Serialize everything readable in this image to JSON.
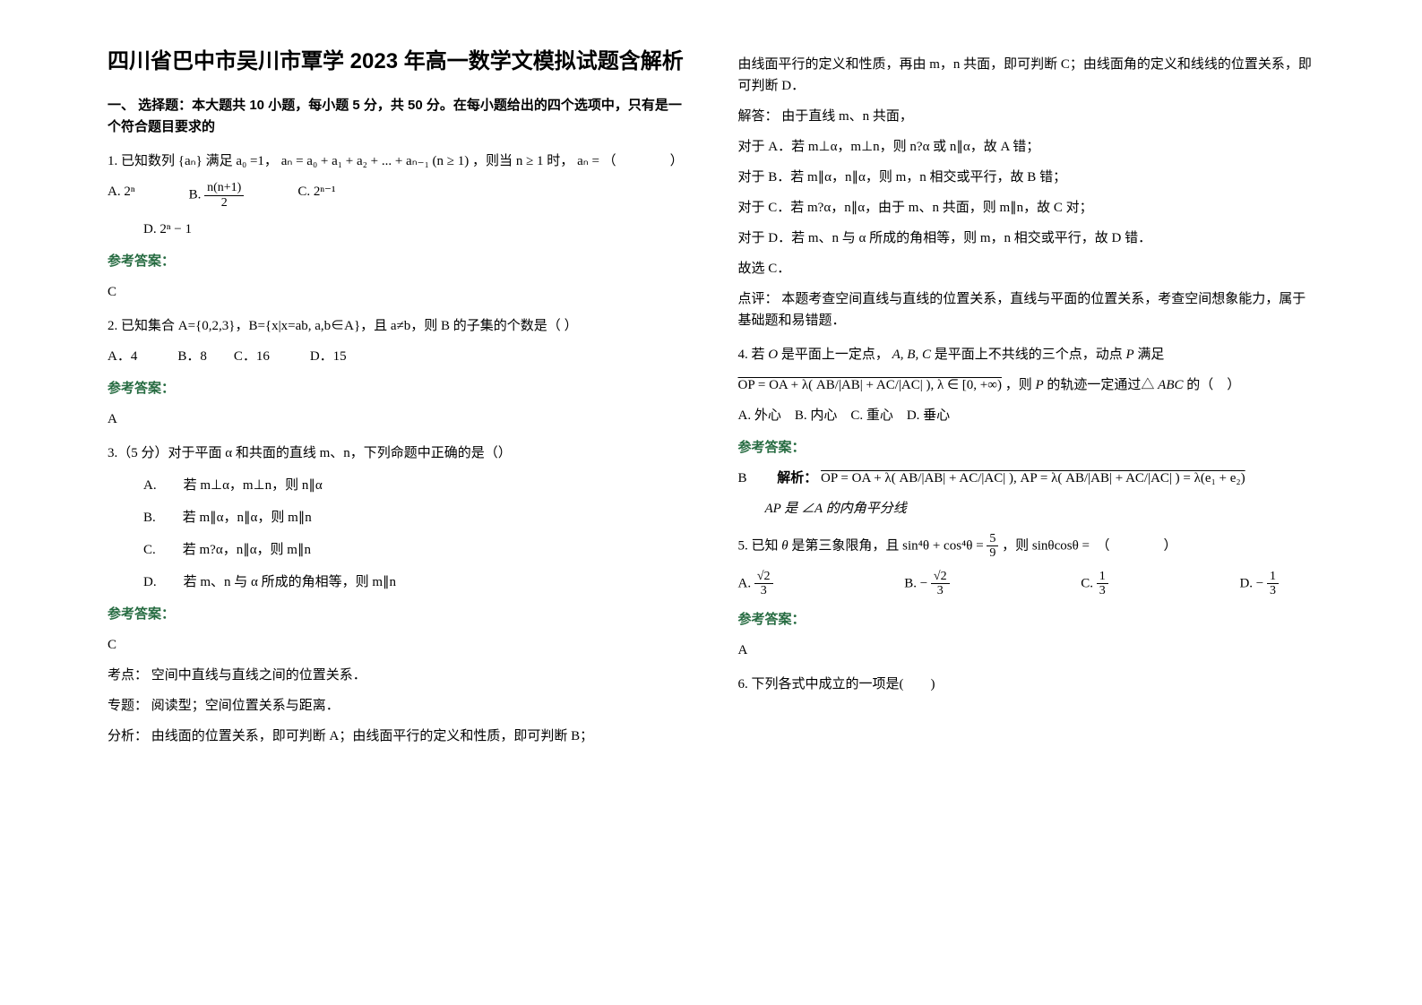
{
  "title": "四川省巴中市吴川市覃学 2023 年高一数学文模拟试题含解析",
  "section1_header": "一、 选择题：本大题共 10 小题，每小题 5 分，共 50 分。在每小题给出的四个选项中，只有是一个符合题目要求的",
  "q1": {
    "stem_a": "1. 已知数列",
    "stem_b": " 满足",
    "stem_c": "=1，",
    "stem_d": "，则当",
    "stem_e": "时，",
    "stem_f": " = （　　　　）",
    "seq": "{aₙ}",
    "a0": "a₀",
    "rec": "aₙ = a₀ + a₁ + a₂ + ... + aₙ₋₁ (n ≥ 1)",
    "cond": "n ≥ 1",
    "an": "aₙ",
    "optA": "A. 2ⁿ",
    "optB_label": "B. ",
    "optB_num": "n(n+1)",
    "optB_den": "2",
    "optC": "C. 2ⁿ⁻¹",
    "optD": "D. 2ⁿ − 1",
    "answer": "C"
  },
  "q2": {
    "stem": "2. 已知集合 A={0,2,3}，B={x|x=ab, a,b∈A}，且 a≠b，则 B 的子集的个数是（ ）",
    "opts": "A．4　　　B．8　　C．16　　　D．15",
    "answer": "A"
  },
  "q3": {
    "stem": "3.（5 分）对于平面 α 和共面的直线 m、n，下列命题中正确的是（）",
    "optA": "A.　　若 m⊥α，m⊥n，则 n∥α",
    "optB": "B.　　若 m∥α，n∥α，则 m∥n",
    "optC": "C.　　若 m?α，n∥α，则 m∥n",
    "optD": "D.　　若 m、n 与 α 所成的角相等，则 m∥n",
    "answer": "C",
    "kaodian_label": "考点：",
    "kaodian": "空间中直线与直线之间的位置关系．",
    "zhuanti_label": "专题：",
    "zhuanti": "阅读型；空间位置关系与距离．",
    "fenxi_label": "分析：",
    "fenxi": "由线面的位置关系，即可判断 A；由线面平行的定义和性质，即可判断 B；"
  },
  "col2": {
    "fenxi2": "由线面平行的定义和性质，再由 m，n 共面，即可判断 C；由线面角的定义和线线的位置关系，即可判断 D．",
    "jieda_label": "解答：",
    "jieda": "由于直线 m、n 共面，",
    "lA": "对于 A．若 m⊥α，m⊥n，则 n?α 或 n∥α，故 A 错；",
    "lB": "对于 B．若 m∥α，n∥α，则 m，n 相交或平行，故 B 错；",
    "lC": "对于 C．若 m?α，n∥α，由于 m、n 共面，则 m∥n，故 C 对；",
    "lD": "对于 D．若 m、n 与 α 所成的角相等，则 m，n 相交或平行，故 D 错．",
    "guxuan": "故选 C．",
    "dianping_label": "点评：",
    "dianping": "本题考查空间直线与直线的位置关系，直线与平面的位置关系，考查空间想象能力，属于基础题和易错题．"
  },
  "q4": {
    "stem_a": "4. 若",
    "stem_b": " 是平面上一定点，",
    "stem_c": " 是平面上不共线的三个点，动点",
    "stem_d": " 满足",
    "O": "O",
    "ABC": "A, B, C",
    "P": "P",
    "formula": "OP = OA + λ( AB/|AB| + AC/|AC| ), λ ∈ [0, +∞)",
    "tail_a": "，则",
    "tail_b": " 的轨迹一定通过△",
    "tail_c": " 的（　）",
    "P2": "P",
    "ABC2": "ABC",
    "opts": "A. 外心　B. 内心　C. 重心　D. 垂心",
    "answer": "B",
    "jiexi_label": "解析：",
    "jiexi_formula": "OP = OA + λ( AB/|AB| + AC/|AC| ), AP = λ( AB/|AB| + AC/|AC| ) = λ(e₁ + e₂)",
    "jiexi_tail": "AP 是 ∠A 的内角平分线"
  },
  "q5": {
    "stem_a": "5. 已知",
    "stem_b": " 是第三象限角，且 ",
    "stem_c": "，则",
    "stem_d": " =　（　　　　）",
    "theta": "θ",
    "eq_lhs": "sin⁴θ + cos⁴θ = ",
    "eq_num": "5",
    "eq_den": "9",
    "target": "sinθcosθ",
    "optA_label": "A. ",
    "optA_num": "√2",
    "optA_den": "3",
    "optB_label": "B. ",
    "optB_prefix": "− ",
    "optB_num": "√2",
    "optB_den": "3",
    "optC_label": "C. ",
    "optC_num": "1",
    "optC_den": "3",
    "optD_label": "D. ",
    "optD_prefix": "− ",
    "optD_num": "1",
    "optD_den": "3",
    "answer": "A"
  },
  "q6": {
    "stem": "6. 下列各式中成立的一项是(　　)"
  },
  "labels": {
    "answer": "参考答案："
  }
}
